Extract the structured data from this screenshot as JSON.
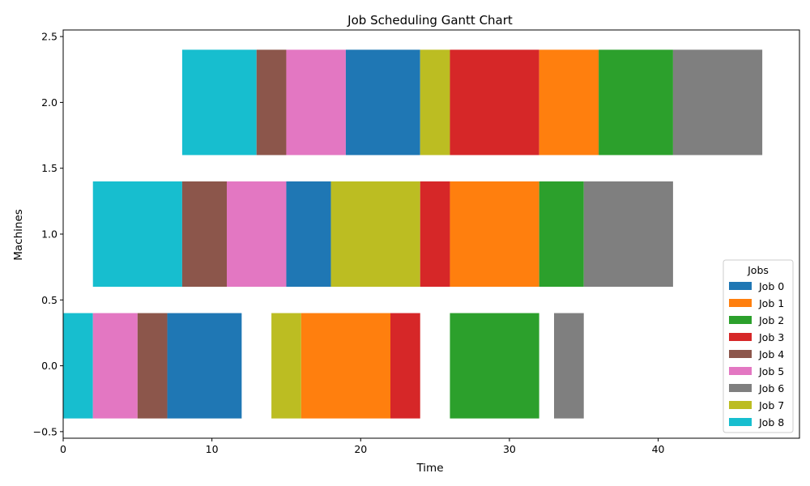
{
  "chart_data": {
    "type": "bar",
    "orientation": "horizontal",
    "title": "Job Scheduling Gantt Chart",
    "xlabel": "Time",
    "ylabel": "Machines",
    "xlim": [
      0,
      49.5
    ],
    "ylim": [
      -0.55,
      2.55
    ],
    "xticks": [
      "0",
      "10",
      "20",
      "30",
      "40"
    ],
    "yticks": [
      "−0.5",
      "0.0",
      "0.5",
      "1.0",
      "1.5",
      "2.0",
      "2.5"
    ],
    "grid": false,
    "legend": {
      "title": "Jobs",
      "placement": "lower-right"
    },
    "jobs": [
      {
        "name": "Job 0",
        "color": "#1f77b4"
      },
      {
        "name": "Job 1",
        "color": "#ff7f0e"
      },
      {
        "name": "Job 2",
        "color": "#2ca02c"
      },
      {
        "name": "Job 3",
        "color": "#d62728"
      },
      {
        "name": "Job 4",
        "color": "#8c564b"
      },
      {
        "name": "Job 5",
        "color": "#e377c2"
      },
      {
        "name": "Job 6",
        "color": "#7f7f7f"
      },
      {
        "name": "Job 7",
        "color": "#bcbd22"
      },
      {
        "name": "Job 8",
        "color": "#17becf"
      }
    ],
    "machines": [
      {
        "machine": 0,
        "tasks": [
          {
            "job": 8,
            "start": 0,
            "end": 2
          },
          {
            "job": 5,
            "start": 2,
            "end": 5
          },
          {
            "job": 4,
            "start": 5,
            "end": 7
          },
          {
            "job": 0,
            "start": 7,
            "end": 12
          },
          {
            "job": 7,
            "start": 14,
            "end": 16
          },
          {
            "job": 1,
            "start": 16,
            "end": 22
          },
          {
            "job": 3,
            "start": 22,
            "end": 24
          },
          {
            "job": 2,
            "start": 26,
            "end": 32
          },
          {
            "job": 6,
            "start": 33,
            "end": 35
          }
        ]
      },
      {
        "machine": 1,
        "tasks": [
          {
            "job": 8,
            "start": 2,
            "end": 8
          },
          {
            "job": 4,
            "start": 8,
            "end": 11
          },
          {
            "job": 5,
            "start": 11,
            "end": 15
          },
          {
            "job": 0,
            "start": 15,
            "end": 18
          },
          {
            "job": 7,
            "start": 18,
            "end": 24
          },
          {
            "job": 3,
            "start": 24,
            "end": 26
          },
          {
            "job": 1,
            "start": 26,
            "end": 32
          },
          {
            "job": 2,
            "start": 32,
            "end": 35
          },
          {
            "job": 6,
            "start": 35,
            "end": 41
          }
        ]
      },
      {
        "machine": 2,
        "tasks": [
          {
            "job": 8,
            "start": 8,
            "end": 13
          },
          {
            "job": 4,
            "start": 13,
            "end": 15
          },
          {
            "job": 5,
            "start": 15,
            "end": 19
          },
          {
            "job": 0,
            "start": 19,
            "end": 24
          },
          {
            "job": 7,
            "start": 24,
            "end": 26
          },
          {
            "job": 3,
            "start": 26,
            "end": 32
          },
          {
            "job": 1,
            "start": 32,
            "end": 36
          },
          {
            "job": 2,
            "start": 36,
            "end": 41
          },
          {
            "job": 6,
            "start": 41,
            "end": 47
          }
        ]
      }
    ]
  }
}
